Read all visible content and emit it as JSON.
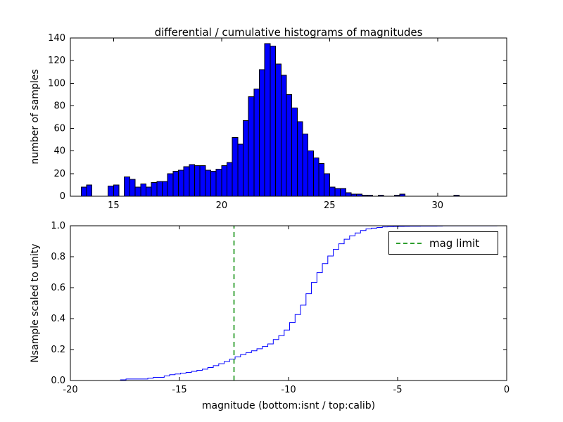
{
  "chart_data": [
    {
      "id": "differential-histogram",
      "type": "bar",
      "subtype": "histogram",
      "title": "differential / cumulative histograms of magnitudes",
      "ylabel": "number of samples",
      "xlim": [
        13.0,
        33.2
      ],
      "ylim": [
        0,
        140
      ],
      "xticks": [
        15,
        20,
        25,
        30
      ],
      "xtick_labels": [
        "15",
        "20",
        "25",
        "30"
      ],
      "yticks": [
        0,
        20,
        40,
        60,
        80,
        100,
        120,
        140
      ],
      "ytick_labels": [
        "0",
        "20",
        "40",
        "60",
        "80",
        "100",
        "120",
        "140"
      ],
      "grid": false,
      "bar_color": "#0000ff",
      "bar_edge_color": "#000000",
      "bin_start": 13.5,
      "bin_width": 0.25,
      "values": [
        8,
        10,
        0,
        0,
        0,
        9,
        10,
        0,
        17,
        15,
        8,
        11,
        8,
        12,
        13,
        13,
        20,
        22,
        23,
        26,
        28,
        27,
        27,
        23,
        22,
        24,
        27,
        30,
        52,
        46,
        67,
        88,
        95,
        112,
        135,
        133,
        117,
        107,
        90,
        78,
        66,
        55,
        40,
        34,
        29,
        20,
        8,
        7,
        7,
        3,
        2,
        2,
        1,
        1,
        0,
        1,
        0,
        0,
        1,
        2,
        0,
        0,
        0,
        0,
        0,
        0,
        0,
        0,
        0,
        1,
        0,
        0
      ]
    },
    {
      "id": "cumulative-histogram",
      "type": "line",
      "subtype": "cumulative-step",
      "xlabel": "magnitude (bottom:isnt / top:calib)",
      "ylabel": "Nsample scaled to unity",
      "xlim": [
        -20,
        0
      ],
      "ylim": [
        0,
        1.0
      ],
      "xticks": [
        -20,
        -15,
        -10,
        -5,
        0
      ],
      "xtick_labels": [
        "-20",
        "-15",
        "-10",
        "-5",
        "0"
      ],
      "yticks": [
        0,
        0.2,
        0.4,
        0.6,
        0.8,
        1.0
      ],
      "ytick_labels": [
        "0.0",
        "0.2",
        "0.4",
        "0.6",
        "0.8",
        "1.0"
      ],
      "grid": false,
      "line_color": "#0000ff",
      "x_offset_from_top": -31.2,
      "mag_limit": {
        "x": -12.5,
        "color": "#2e9e2e",
        "linestyle": "dashed",
        "linewidth": 1.8
      },
      "legend": {
        "label": "mag limit",
        "position": "upper right"
      }
    }
  ]
}
